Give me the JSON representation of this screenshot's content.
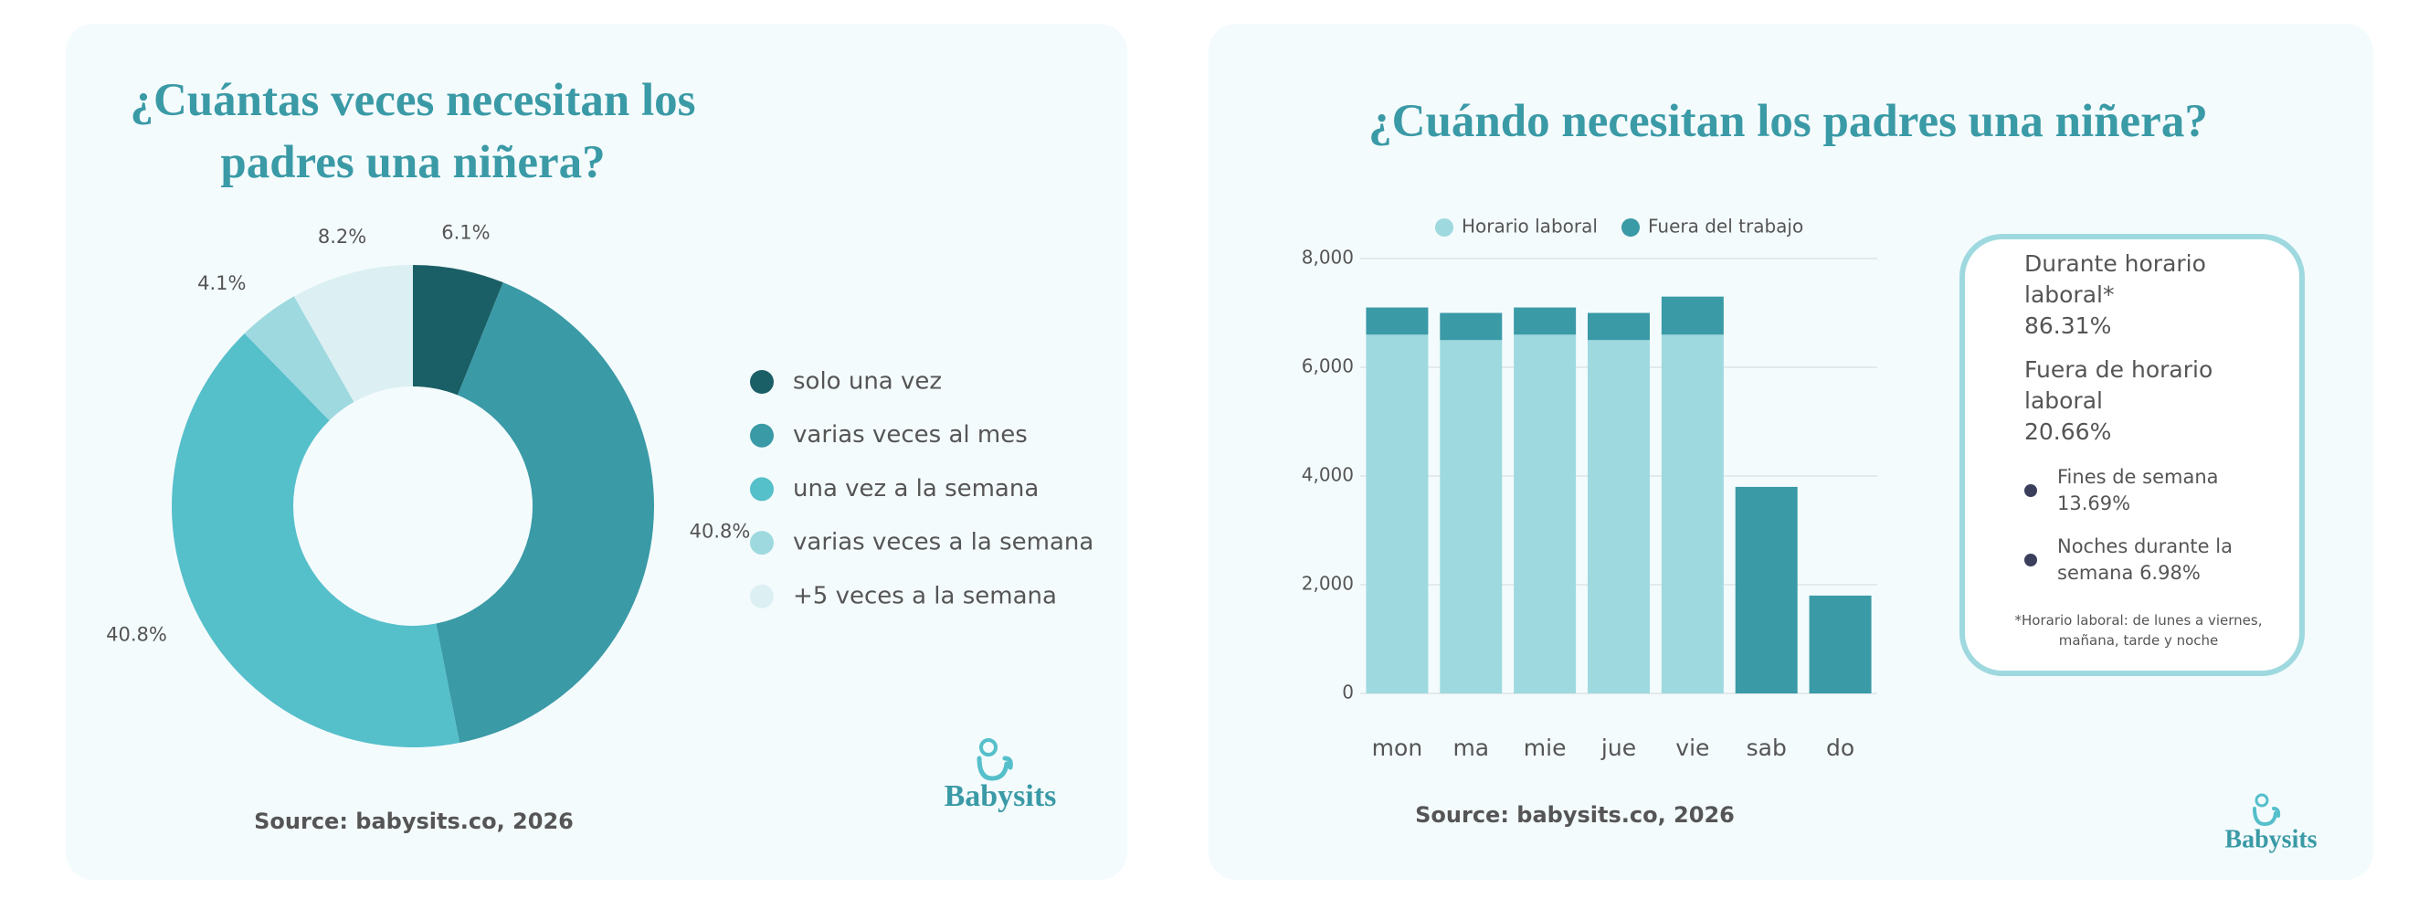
{
  "chart_data": [
    {
      "type": "donut",
      "title": "¿Cuántas veces necesitan los padres una niñera?",
      "categories": [
        "solo una vez",
        "varias veces al mes",
        "una vez a la semana",
        "varias veces a la semana",
        "+5 veces a la semana"
      ],
      "values": [
        6.1,
        40.8,
        40.8,
        4.1,
        8.2
      ],
      "value_labels": [
        "6.1%",
        "40.8%",
        "40.8%",
        "4.1%",
        "8.2%"
      ],
      "colors": [
        "#1b5f66",
        "#3a9aa6",
        "#55bfca",
        "#9ed9df",
        "#dcf0f3"
      ],
      "legend": "right",
      "source": "Source: babysits.co, 2026"
    },
    {
      "type": "bar",
      "stacked": true,
      "title": "¿Cuándo necesitan los padres una niñera?",
      "categories": [
        "mon",
        "ma",
        "mie",
        "jue",
        "vie",
        "sab",
        "do"
      ],
      "series": [
        {
          "name": "Horario laboral",
          "color": "#9ed9df",
          "values": [
            6600,
            6500,
            6600,
            6500,
            6600,
            0,
            0
          ]
        },
        {
          "name": "Fuera del trabajo",
          "color": "#3a9aa6",
          "values": [
            500,
            500,
            500,
            500,
            700,
            3800,
            1800
          ]
        }
      ],
      "ylim": [
        0,
        8000
      ],
      "yticks": [
        0,
        {
          "value": 2000,
          "label": "2,000"
        },
        {
          "value": 4000,
          "label": "4,000"
        },
        {
          "value": 6000,
          "label": "6,000"
        },
        {
          "value": 8000,
          "label": "8,000"
        }
      ],
      "grid": true,
      "legend": "top",
      "source": "Source: babysits.co, 2026"
    }
  ],
  "info_box": {
    "items": [
      {
        "label": "Durante horario laboral*",
        "value": "86.31%"
      },
      {
        "label": "Fuera de horario laboral",
        "value": "20.66%"
      }
    ],
    "sub_items": [
      {
        "label": "Fines de semana",
        "value": "13.69%"
      },
      {
        "label": "Noches durante la semana",
        "value": "6.98%"
      }
    ],
    "footnote": "*Horario laboral: de lunes a viernes, mañana, tarde y noche"
  },
  "brand": "Babysits"
}
